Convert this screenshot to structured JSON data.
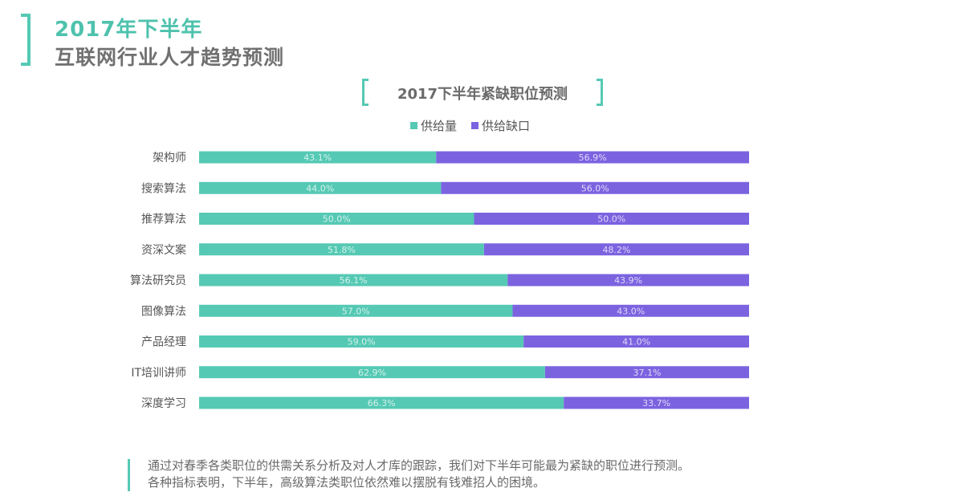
{
  "header": {
    "title_line1": "2017年下半年",
    "title_line2": "互联网行业人才趋势预测"
  },
  "chart_data": {
    "type": "bar",
    "orientation": "horizontal",
    "stacked": true,
    "title": "2017下半年紧缺职位预测",
    "categories": [
      "架构师",
      "搜索算法",
      "推荐算法",
      "资深文案",
      "算法研究员",
      "图像算法",
      "产品经理",
      "IT培训讲师",
      "深度学习"
    ],
    "series": [
      {
        "name": "供给量",
        "color": "#55c9b4",
        "values": [
          43.1,
          44.0,
          50.0,
          51.8,
          56.1,
          57.0,
          59.0,
          62.9,
          66.3
        ],
        "labels": [
          "43.1%",
          "44.0%",
          "50.0%",
          "51.8%",
          "56.1%",
          "57.0%",
          "59.0%",
          "62.9%",
          "66.3%"
        ]
      },
      {
        "name": "供给缺口",
        "color": "#7b63e0",
        "values": [
          56.9,
          56.0,
          50.0,
          48.2,
          43.9,
          43.0,
          41.0,
          37.1,
          33.7
        ],
        "labels": [
          "56.9%",
          "56.0%",
          "50.0%",
          "48.2%",
          "43.9%",
          "43.0%",
          "41.0%",
          "37.1%",
          "33.7%"
        ]
      }
    ],
    "xlim": [
      0,
      100
    ],
    "legend_position": "top-center",
    "grid": false
  },
  "note": {
    "line1": "通过对春季各类职位的供需关系分析及对人才库的跟踪，我们对下半年可能最为紧缺的职位进行预测。",
    "line2": "各种指标表明，下半年，高级算法类职位依然难以摆脱有钱难招人的困境。"
  }
}
